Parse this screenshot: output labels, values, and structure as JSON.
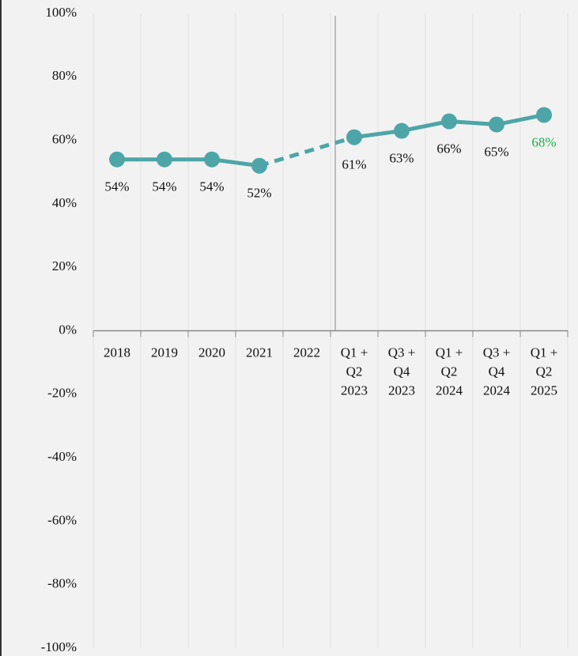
{
  "chart_data": {
    "type": "line",
    "categories": [
      "2018",
      "2019",
      "2020",
      "2021",
      "2022",
      "Q1 +\nQ2\n2023",
      "Q3 +\nQ4\n2023",
      "Q1 +\nQ2\n2024",
      "Q3 +\nQ4\n2024",
      "Q1 +\nQ2\n2025"
    ],
    "series": [
      {
        "name": null,
        "color": "#4ea5a7",
        "values": [
          54,
          54,
          54,
          52,
          null,
          61,
          63,
          66,
          65,
          68
        ],
        "value_labels": [
          "54%",
          "54%",
          "54%",
          "52%",
          null,
          "61%",
          "63%",
          "66%",
          "65%",
          "68%"
        ],
        "value_label_colors": [
          "#111111",
          "#111111",
          "#111111",
          "#111111",
          null,
          "#111111",
          "#111111",
          "#111111",
          "#111111",
          "#1aaf4a"
        ]
      }
    ],
    "ylim": [
      -100,
      100
    ],
    "yticks": [
      {
        "value": 100,
        "label": "100%"
      },
      {
        "value": 80,
        "label": "80%"
      },
      {
        "value": 60,
        "label": "60%"
      },
      {
        "value": 40,
        "label": "40%"
      },
      {
        "value": 20,
        "label": "20%"
      },
      {
        "value": 0,
        "label": "0%"
      },
      {
        "value": -20,
        "label": "-20%"
      },
      {
        "value": -40,
        "label": "-40%"
      },
      {
        "value": -60,
        "label": "-60%"
      },
      {
        "value": -80,
        "label": "-80%"
      },
      {
        "value": -100,
        "label": "-100%"
      }
    ],
    "grid": true
  }
}
